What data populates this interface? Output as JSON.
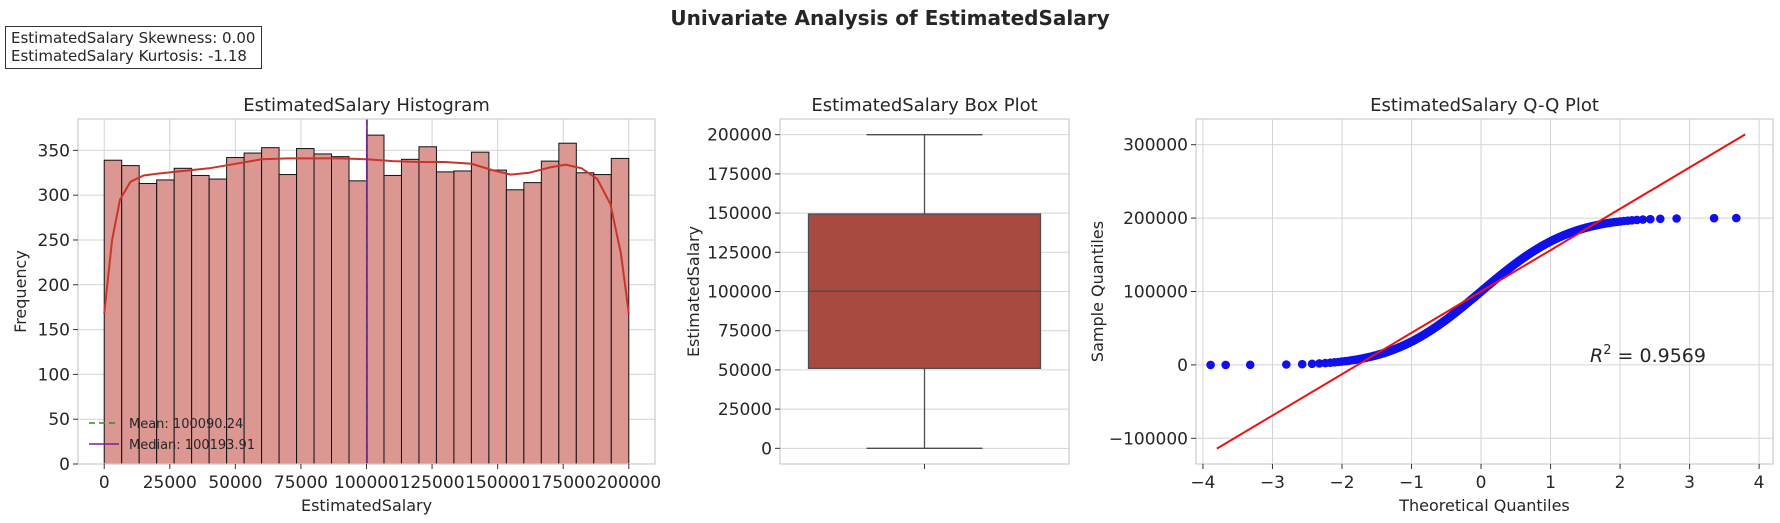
{
  "figure": {
    "suptitle": "Univariate Analysis of EstimatedSalary",
    "stats": {
      "skewness_label": "EstimatedSalary Skewness: 0.00",
      "kurtosis_label": "EstimatedSalary Kurtosis: -1.18"
    }
  },
  "colors": {
    "hist_bar": "#dc9793",
    "hist_edge": "#111111",
    "kde": "#c8352c",
    "mean_line": "#2e8b2e",
    "median_line": "#7a1fa2",
    "box_fill": "#a94a42",
    "qq_points": "#1010ee",
    "qq_line": "#ee1111",
    "grid": "#d4d4d4"
  },
  "chart_data": [
    {
      "type": "bar",
      "subtype": "histogram",
      "title": "EstimatedSalary Histogram",
      "xlabel": "EstimatedSalary",
      "ylabel": "Frequency",
      "xlim": [
        -10000,
        210000
      ],
      "ylim": [
        0,
        385
      ],
      "xticks": [
        0,
        25000,
        50000,
        75000,
        100000,
        125000,
        150000,
        175000,
        200000
      ],
      "yticks": [
        0,
        50,
        100,
        150,
        200,
        250,
        300,
        350
      ],
      "bin_start": 0,
      "bin_width": 6666.67,
      "values": [
        339,
        333,
        313,
        317,
        330,
        322,
        318,
        342,
        347,
        353,
        323,
        352,
        346,
        343,
        316,
        367,
        322,
        340,
        354,
        326,
        327,
        348,
        328,
        306,
        314,
        338,
        358,
        325,
        323,
        341
      ],
      "kde": [
        [
          0,
          168
        ],
        [
          3000,
          250
        ],
        [
          6000,
          295
        ],
        [
          10000,
          315
        ],
        [
          15000,
          322
        ],
        [
          20000,
          324
        ],
        [
          30000,
          327
        ],
        [
          40000,
          330
        ],
        [
          50000,
          335
        ],
        [
          60000,
          340
        ],
        [
          70000,
          341
        ],
        [
          80000,
          341
        ],
        [
          90000,
          341
        ],
        [
          100000,
          340
        ],
        [
          110000,
          338
        ],
        [
          120000,
          337
        ],
        [
          130000,
          337
        ],
        [
          140000,
          335
        ],
        [
          148000,
          328
        ],
        [
          155000,
          323
        ],
        [
          162000,
          325
        ],
        [
          170000,
          331
        ],
        [
          176000,
          334
        ],
        [
          182000,
          330
        ],
        [
          188000,
          318
        ],
        [
          193000,
          290
        ],
        [
          197000,
          235
        ],
        [
          200000,
          168
        ]
      ],
      "mean": 100090.24,
      "median": 100193.91,
      "legend": [
        {
          "label": "Mean: 100090.24",
          "style": "dashed"
        },
        {
          "label": "Median: 100193.91",
          "style": "solid"
        }
      ],
      "legend_position": "lower-left",
      "grid": true
    },
    {
      "type": "box",
      "title": "EstimatedSalary Box Plot",
      "xlabel": "",
      "ylabel": "EstimatedSalary",
      "ylim": [
        -10000,
        210000
      ],
      "yticks": [
        0,
        25000,
        50000,
        75000,
        100000,
        125000,
        150000,
        175000,
        200000
      ],
      "whisker_low": 11.58,
      "q1": 51002.11,
      "median": 100193.91,
      "q3": 149388.25,
      "whisker_high": 199992.48,
      "grid": true
    },
    {
      "type": "scatter",
      "subtype": "qq",
      "title": "EstimatedSalary Q-Q Plot",
      "xlabel": "Theoretical Quantiles",
      "ylabel": "Sample Quantiles",
      "xlim": [
        -4.1,
        4.2
      ],
      "ylim": [
        -135000,
        335000
      ],
      "xticks": [
        -4,
        -3,
        -2,
        -1,
        0,
        1,
        2,
        3,
        4
      ],
      "yticks": [
        -100000,
        0,
        100000,
        200000,
        300000
      ],
      "annotation": "R² = 0.9569",
      "fit_line": {
        "x": [
          -3.8,
          3.8
        ],
        "y": [
          -114000,
          314000
        ]
      },
      "grid": true
    }
  ]
}
